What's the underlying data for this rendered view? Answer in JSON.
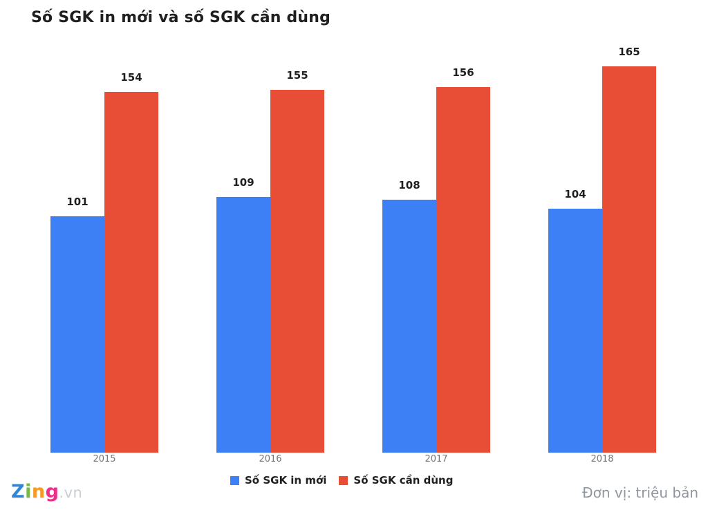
{
  "title": "Số SGK in mới và số SGK cần dùng",
  "chart_data": {
    "type": "bar",
    "categories": [
      "2015",
      "2016",
      "2017",
      "2018"
    ],
    "series": [
      {
        "name": "Số SGK in mới",
        "color": "#3d80f5",
        "values": [
          101,
          109,
          108,
          104
        ]
      },
      {
        "name": "Số SGK cần dùng",
        "color": "#e84d35",
        "values": [
          154,
          155,
          156,
          165
        ]
      }
    ],
    "title": "Số SGK in mới và số SGK cần dùng",
    "xlabel": "",
    "ylabel": "",
    "ylim": [
      0,
      175
    ],
    "grid": false,
    "legend_position": "bottom",
    "data_labels": true,
    "unit_note": "Đơn vị: triệu bản"
  },
  "colors": {
    "title_text": "#1f1f1f",
    "axis_label": "#757575",
    "data_label": "#1f1f1f",
    "unit_text": "#8f969e",
    "background": "#ffffff"
  },
  "footer": {
    "logo": {
      "letters": [
        {
          "char": "Z",
          "color": "#2f86d8"
        },
        {
          "char": "i",
          "color": "#7ab648"
        },
        {
          "char": "n",
          "color": "#f59a23"
        },
        {
          "char": "g",
          "color": "#ee2e8b"
        }
      ],
      "suffix": ".vn",
      "suffix_color": "#c9ced3"
    },
    "unit_label": "Đơn vị: triệu bản"
  }
}
